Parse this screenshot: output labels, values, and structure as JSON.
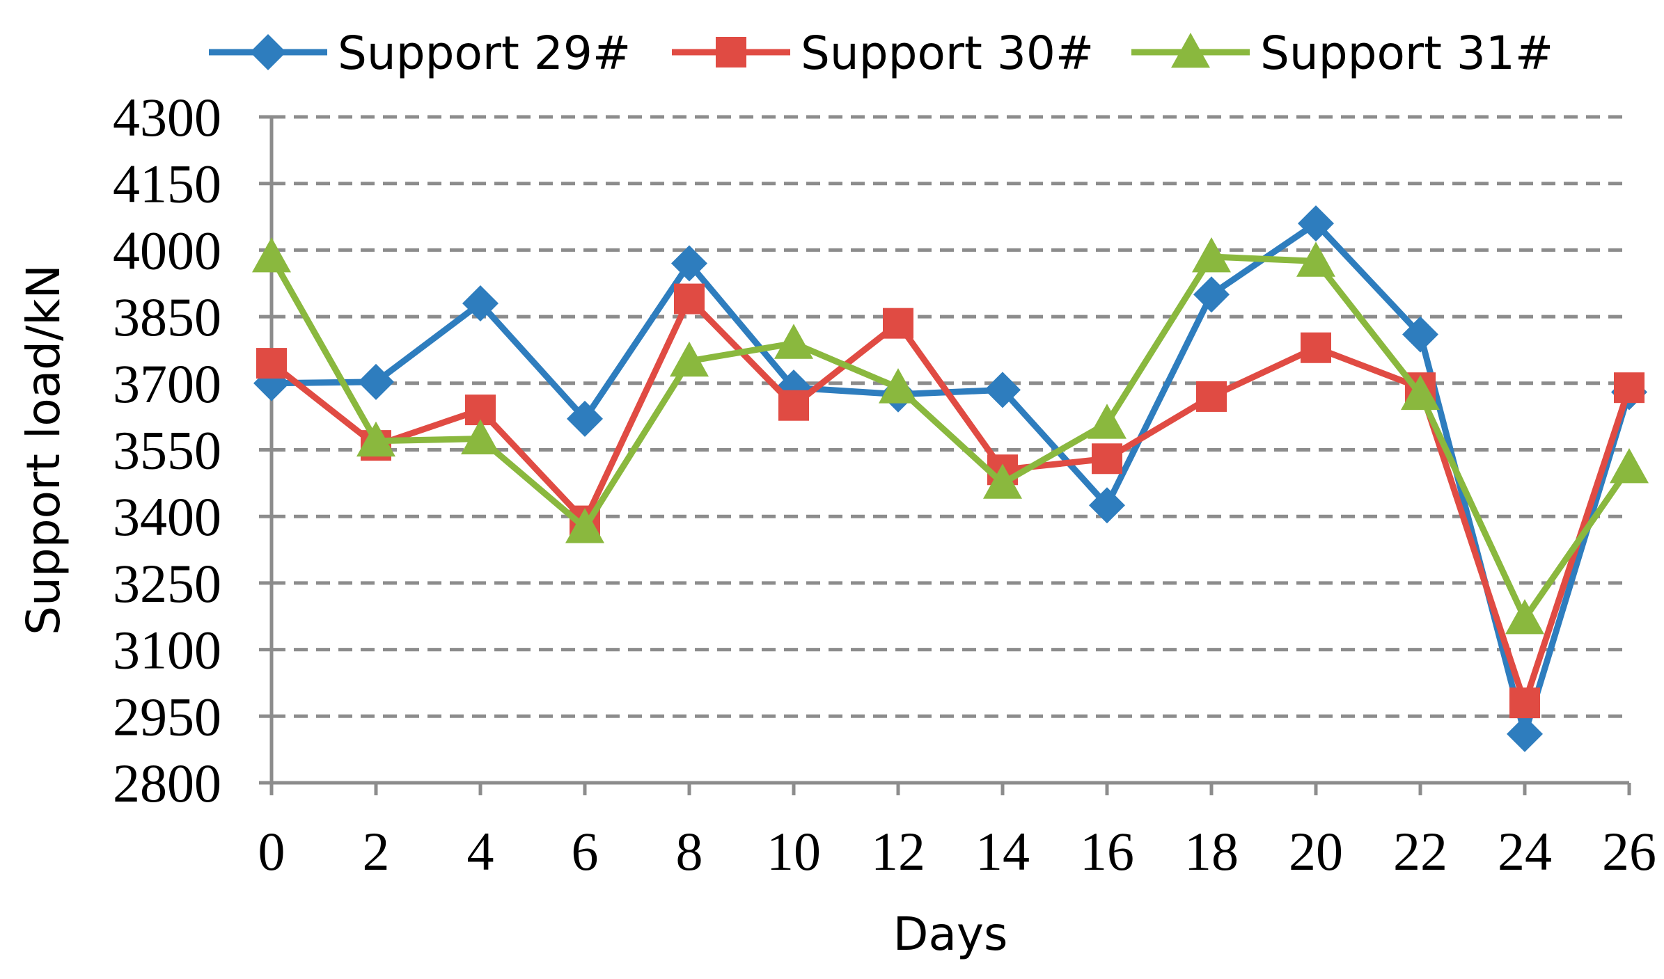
{
  "chart_data": {
    "type": "line",
    "xlabel": "Days",
    "ylabel": "Support load/kN",
    "xlim": [
      0,
      26
    ],
    "ylim": [
      2800,
      4300
    ],
    "x_ticks": [
      "0",
      "2",
      "4",
      "6",
      "8",
      "10",
      "12",
      "14",
      "16",
      "18",
      "20",
      "22",
      "24",
      "26"
    ],
    "y_ticks": [
      "2800",
      "2950",
      "3100",
      "3250",
      "3400",
      "3550",
      "3700",
      "3850",
      "4000",
      "4150",
      "4300"
    ],
    "grid": "horizontal dashed",
    "legend_position": "top",
    "x": [
      0,
      2,
      4,
      6,
      8,
      10,
      12,
      14,
      16,
      18,
      20,
      22,
      24,
      26
    ],
    "series": [
      {
        "name": "Support 29#",
        "color": "#2E7DBE",
        "marker": "diamond",
        "values": [
          3700,
          3703,
          3880,
          3620,
          3970,
          3690,
          3675,
          3685,
          3425,
          3900,
          4060,
          3810,
          2910,
          3680
        ]
      },
      {
        "name": "Support 30#",
        "color": "#E04B43",
        "marker": "square",
        "values": [
          3745,
          3560,
          3640,
          3390,
          3890,
          3650,
          3835,
          3505,
          3530,
          3670,
          3780,
          3690,
          2980,
          3690
        ]
      },
      {
        "name": "Support 31#",
        "color": "#8AB83E",
        "marker": "triangle",
        "values": [
          3985,
          3570,
          3575,
          3375,
          3750,
          3790,
          3690,
          3475,
          3610,
          3985,
          3975,
          3675,
          3170,
          3510
        ]
      }
    ]
  }
}
